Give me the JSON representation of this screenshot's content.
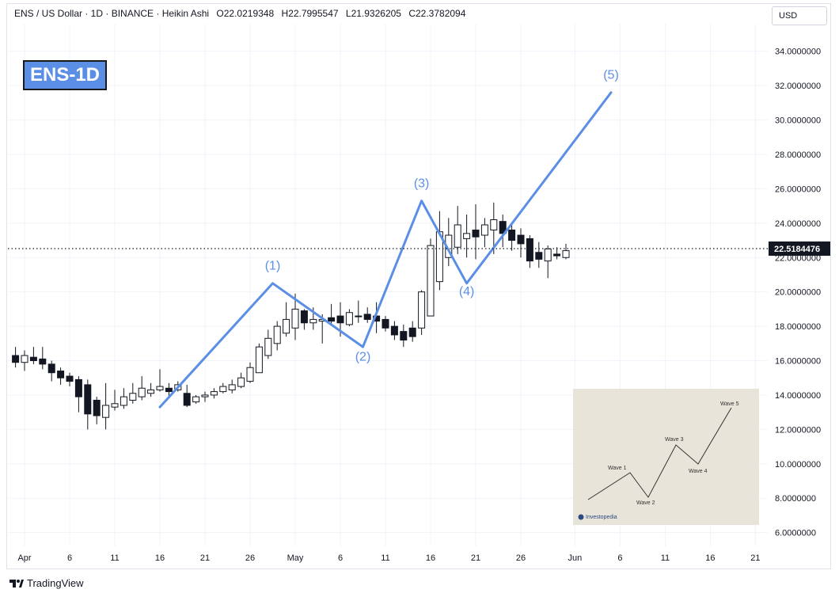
{
  "header": {
    "symbol": "ENS / US Dollar · 1D · BINANCE · Heikin Ashi",
    "open": "O22.0219348",
    "high": "H22.7995547",
    "low": "L21.9326205",
    "close": "C22.3782094"
  },
  "currency": "USD",
  "badge": "ENS-1D",
  "footer": {
    "brand": "TradingView"
  },
  "inset": {
    "brand": "Investopedia",
    "labels": [
      "Wave 1",
      "Wave 2",
      "Wave 3",
      "Wave 4",
      "Wave 5"
    ]
  },
  "colors": {
    "wave": "#5b8fe6",
    "candle": "#131722",
    "badge_bg": "#5b8fe6"
  },
  "chart_data": {
    "type": "candlestick",
    "price_axis": {
      "ticks": [
        34,
        32,
        30,
        28,
        26,
        24,
        22,
        20,
        18,
        16,
        14,
        12,
        10,
        8,
        6
      ],
      "tick_labels": [
        "34.0000000",
        "32.0000000",
        "30.0000000",
        "28.0000000",
        "26.0000000",
        "24.0000000",
        "22.0000000",
        "20.0000000",
        "18.0000000",
        "16.0000000",
        "14.0000000",
        "12.0000000",
        "10.0000000",
        "8.0000000",
        "6.0000000"
      ],
      "range": [
        5.2,
        35.6
      ]
    },
    "time_axis": {
      "labels": [
        {
          "day": 0,
          "label": "Apr"
        },
        {
          "day": 5,
          "label": "6"
        },
        {
          "day": 10,
          "label": "11"
        },
        {
          "day": 15,
          "label": "16"
        },
        {
          "day": 20,
          "label": "21"
        },
        {
          "day": 25,
          "label": "26"
        },
        {
          "day": 30,
          "label": "May"
        },
        {
          "day": 35,
          "label": "6"
        },
        {
          "day": 40,
          "label": "11"
        },
        {
          "day": 45,
          "label": "16"
        },
        {
          "day": 50,
          "label": "21"
        },
        {
          "day": 55,
          "label": "26"
        },
        {
          "day": 61,
          "label": "Jun"
        },
        {
          "day": 66,
          "label": "6"
        },
        {
          "day": 71,
          "label": "11"
        },
        {
          "day": 76,
          "label": "16"
        },
        {
          "day": 81,
          "label": "21"
        }
      ]
    },
    "last_price": 22.5184476,
    "last_price_label": "22.5184476",
    "candles": [
      [
        -1,
        16.3,
        15.9,
        16.8,
        15.6
      ],
      [
        0,
        15.9,
        16.3,
        16.6,
        15.4
      ],
      [
        1,
        16.2,
        16.0,
        16.8,
        15.8
      ],
      [
        2,
        16.1,
        15.8,
        16.8,
        15.5
      ],
      [
        3,
        15.8,
        15.3,
        16.0,
        14.8
      ],
      [
        4,
        15.4,
        15.0,
        15.6,
        14.6
      ],
      [
        5,
        15.1,
        14.8,
        15.3,
        14.5
      ],
      [
        6,
        14.9,
        13.9,
        15.1,
        13.0
      ],
      [
        7,
        14.6,
        12.9,
        14.9,
        12.0
      ],
      [
        8,
        13.7,
        12.8,
        13.9,
        12.3
      ],
      [
        9,
        12.7,
        13.4,
        14.7,
        12.0
      ],
      [
        10,
        13.3,
        13.5,
        14.3,
        13.1
      ],
      [
        11,
        13.4,
        13.9,
        14.4,
        13.2
      ],
      [
        12,
        13.7,
        14.1,
        14.7,
        13.5
      ],
      [
        13,
        13.9,
        14.4,
        15.1,
        13.7
      ],
      [
        14,
        14.1,
        14.3,
        14.7,
        13.9
      ],
      [
        15,
        14.3,
        14.5,
        15.5,
        14.2
      ],
      [
        16,
        14.4,
        14.2,
        14.7,
        13.9
      ],
      [
        17,
        14.3,
        14.6,
        14.8,
        14.2
      ],
      [
        18,
        14.1,
        13.4,
        14.6,
        13.3
      ],
      [
        19,
        13.6,
        13.9,
        14.0,
        13.5
      ],
      [
        20,
        13.9,
        14.0,
        14.2,
        13.6
      ],
      [
        21,
        14.0,
        14.2,
        14.4,
        13.8
      ],
      [
        22,
        14.2,
        14.5,
        14.7,
        14.1
      ],
      [
        23,
        14.3,
        14.6,
        14.9,
        14.1
      ],
      [
        24,
        14.5,
        15.0,
        15.3,
        14.4
      ],
      [
        25,
        14.8,
        15.6,
        15.9,
        14.7
      ],
      [
        26,
        15.3,
        16.8,
        17.0,
        15.3
      ],
      [
        27,
        16.3,
        17.3,
        17.8,
        16.1
      ],
      [
        28,
        17.0,
        18.0,
        18.3,
        16.6
      ],
      [
        29,
        17.6,
        18.4,
        19.4,
        17.4
      ],
      [
        30,
        17.9,
        19.0,
        19.9,
        17.2
      ],
      [
        31,
        18.9,
        18.2,
        19.0,
        17.8
      ],
      [
        32,
        18.2,
        18.4,
        19.1,
        17.8
      ],
      [
        33,
        18.3,
        18.4,
        18.7,
        17.0
      ],
      [
        34,
        18.5,
        18.3,
        19.3,
        18.1
      ],
      [
        35,
        18.6,
        18.2,
        19.4,
        17.4
      ],
      [
        36,
        18.1,
        18.8,
        19.0,
        18.0
      ],
      [
        37,
        18.6,
        18.6,
        19.5,
        18.2
      ],
      [
        38,
        18.7,
        18.4,
        19.1,
        18.2
      ],
      [
        39,
        18.6,
        18.3,
        19.4,
        17.6
      ],
      [
        40,
        18.4,
        17.9,
        18.6,
        17.7
      ],
      [
        41,
        18.0,
        17.5,
        18.3,
        17.2
      ],
      [
        42,
        17.7,
        17.2,
        18.1,
        16.8
      ],
      [
        43,
        17.9,
        17.4,
        18.3,
        17.1
      ],
      [
        44,
        17.9,
        20.0,
        20.1,
        17.5
      ],
      [
        45,
        18.6,
        22.7,
        23.1,
        18.6
      ],
      [
        46,
        20.6,
        23.5,
        24.7,
        20.1
      ],
      [
        47,
        22.0,
        23.3,
        24.3,
        21.5
      ],
      [
        48,
        22.6,
        23.9,
        25.0,
        22.2
      ],
      [
        49,
        23.1,
        23.4,
        24.5,
        22.0
      ],
      [
        50,
        23.6,
        23.2,
        25.1,
        21.9
      ],
      [
        51,
        23.3,
        23.9,
        24.3,
        22.6
      ],
      [
        52,
        23.6,
        24.2,
        25.2,
        22.2
      ],
      [
        53,
        24.1,
        23.4,
        24.5,
        22.6
      ],
      [
        54,
        23.6,
        23.0,
        24.0,
        22.4
      ],
      [
        55,
        23.3,
        22.8,
        23.7,
        22.0
      ],
      [
        56,
        23.1,
        21.8,
        23.3,
        21.4
      ],
      [
        57,
        22.3,
        21.9,
        22.9,
        21.4
      ],
      [
        58,
        21.8,
        22.5,
        22.7,
        20.8
      ],
      [
        59,
        22.2,
        22.1,
        22.6,
        21.9
      ],
      [
        60,
        22.0,
        22.4,
        22.8,
        21.9
      ]
    ],
    "wave_path": [
      {
        "day": 15,
        "price": 13.3
      },
      {
        "day": 27.5,
        "price": 20.5
      },
      {
        "day": 37.5,
        "price": 16.8
      },
      {
        "day": 44,
        "price": 25.3
      },
      {
        "day": 49,
        "price": 20.5
      },
      {
        "day": 65,
        "price": 31.6
      }
    ],
    "wave_labels": [
      {
        "day": 27.5,
        "price": 21.3,
        "label": "(1)"
      },
      {
        "day": 37.5,
        "price": 16.0,
        "label": "(2)"
      },
      {
        "day": 44,
        "price": 26.1,
        "label": "(3)"
      },
      {
        "day": 49,
        "price": 19.8,
        "label": "(4)"
      },
      {
        "day": 65,
        "price": 32.4,
        "label": "(5)"
      }
    ]
  }
}
